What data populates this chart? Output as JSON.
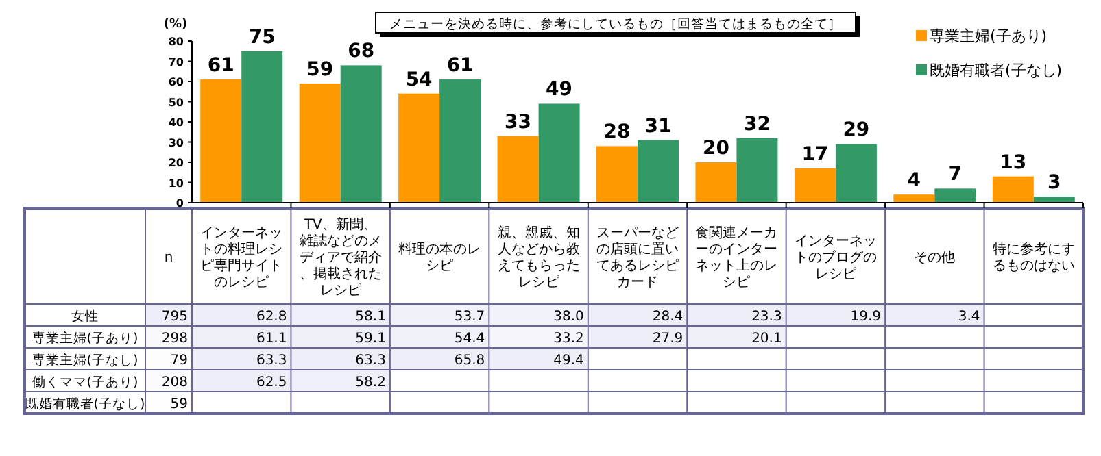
{
  "chart_data": [
    {
      "type": "bar",
      "title": "メニューを決める時に、参考にしているもの［回答当てはまるもの全て］",
      "ylabel": "(%)",
      "categories": [
        null,
        null,
        null,
        null,
        null,
        null,
        null,
        null,
        null
      ],
      "series": [
        {
          "name": "専業主婦(子あり)",
          "color": "#ff9900",
          "values": [
            61,
            59,
            54,
            33,
            28,
            20,
            17,
            4,
            13
          ]
        },
        {
          "name": "既婚有職者(子なし)",
          "color": "#339966",
          "values": [
            75,
            68,
            61,
            49,
            31,
            32,
            29,
            7,
            3
          ]
        }
      ],
      "ylim": [
        0,
        80
      ],
      "yticks": [
        0,
        10,
        20,
        30,
        40,
        50,
        60,
        70,
        80
      ],
      "data_labels": true,
      "legend": "top right",
      "grid": false
    },
    {
      "type": "heatmap",
      "categories": [
        "n",
        "インターネットの料理レシピ専門サイトのレシピ",
        "TV、新聞、雑誌などのメディアで紹介、掲載されたレシピ",
        "料理の本のレシピ",
        "親、親戚、知人などから教えてもらったレシピ",
        "スーパーなどの店頭に置いてあるレシピカード",
        "食関連メーカーのインターネット上のレシピ",
        "インターネットのブログのレシピ",
        "その他",
        "特に参考にするものはない"
      ],
      "y_categories": [
        "女性",
        "専業主婦(子あり)",
        "専業主婦(子なし)",
        "働くママ(子あり)",
        "既婚有職者(子なし)"
      ],
      "cells": [
        [
          795,
          62.8,
          58.1,
          53.7,
          38.0,
          28.4,
          23.3,
          19.9,
          3.4,
          null
        ],
        [
          298,
          61.1,
          59.1,
          54.4,
          33.2,
          27.9,
          20.1,
          null,
          null,
          null
        ],
        [
          79,
          63.3,
          63.3,
          65.8,
          49.4,
          null,
          null,
          null,
          null,
          null
        ],
        [
          208,
          62.5,
          58.2,
          null,
          null,
          null,
          null,
          null,
          null,
          null
        ],
        [
          59,
          null,
          null,
          null,
          null,
          null,
          null,
          null,
          null,
          null
        ]
      ],
      "cell_labels": [
        [
          "795",
          "62.8",
          "58.1",
          "53.7",
          "38.0",
          "28.4",
          "23.3",
          "19.9",
          "3.4",
          null
        ],
        [
          "298",
          "61.1",
          "59.1",
          "54.4",
          "33.2",
          "27.9",
          "20.1",
          null,
          null,
          null
        ],
        [
          "79",
          "63.3",
          "63.3",
          "65.8",
          "49.4",
          null,
          null,
          null,
          null,
          null
        ],
        [
          "208",
          "62.5",
          "58.2",
          null,
          null,
          null,
          null,
          null,
          null,
          null
        ],
        [
          "59",
          null,
          null,
          null,
          null,
          null,
          null,
          null,
          null,
          null
        ]
      ]
    }
  ]
}
